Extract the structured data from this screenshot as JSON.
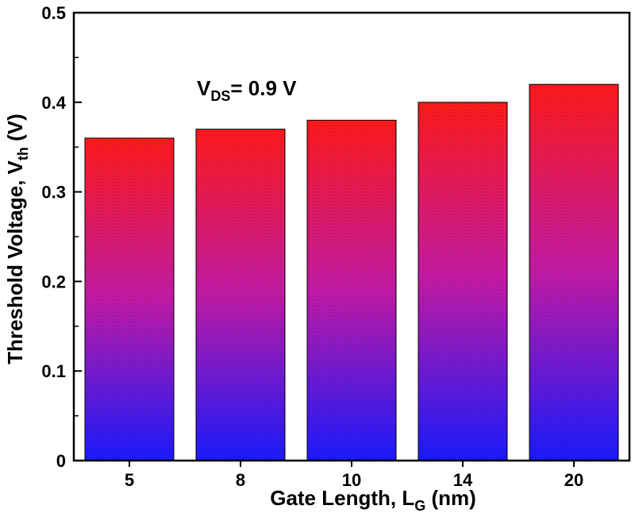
{
  "chart_data": {
    "type": "bar",
    "categories": [
      "5",
      "8",
      "10",
      "14",
      "20"
    ],
    "values": [
      0.36,
      0.37,
      0.38,
      0.4,
      0.42
    ],
    "title": "",
    "xlabel": {
      "main": "Gate Length, L",
      "sub": "G",
      "tail": " (nm)"
    },
    "ylabel": {
      "main": "Threshold Voltage, V",
      "sub": "th",
      "tail": " (V)"
    },
    "ylim": [
      0,
      0.5
    ],
    "yticks": [
      "0",
      "0.1",
      "0.2",
      "0.3",
      "0.4",
      "0.5"
    ],
    "annotation": {
      "main": "V",
      "sub": "DS",
      "tail": "= 0.9 V"
    },
    "grid": false,
    "bar_gradient": {
      "top": "#ff1a1a",
      "middle": "#c21aa6",
      "bottom": "#1a1aff"
    }
  }
}
